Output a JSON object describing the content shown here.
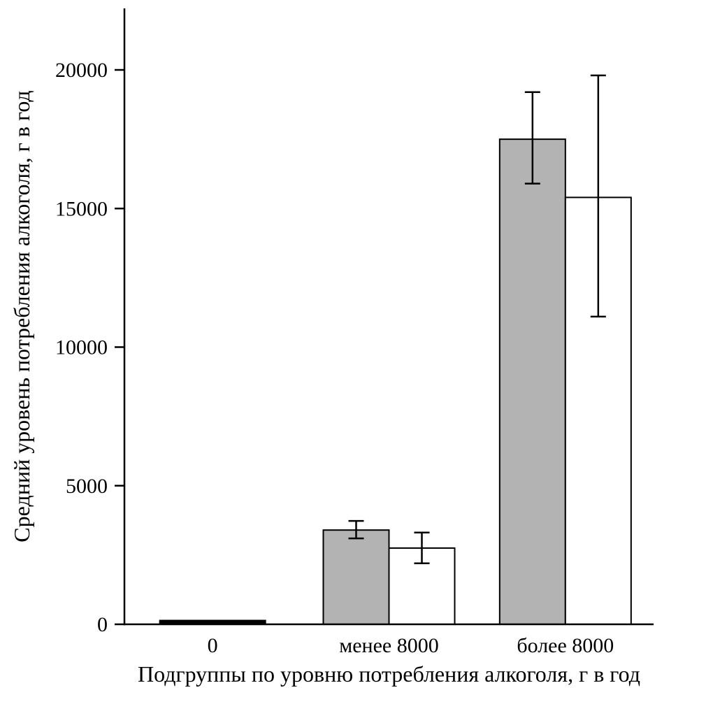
{
  "chart_data": {
    "type": "bar",
    "title": "",
    "xlabel": "Подгруппы по уровню потребления алкоголя, г в год",
    "ylabel": "Средний уровень потребления алкоголя, г в год",
    "categories": [
      "0",
      "менее 8000",
      "более 8000"
    ],
    "y_ticks": [
      0,
      5000,
      10000,
      15000,
      20000
    ],
    "ylim": [
      0,
      22200
    ],
    "grid": false,
    "legend": "none",
    "series": [
      {
        "name": "gray-series",
        "fill": "#b3b3b3",
        "values": [
          150,
          3400,
          17500
        ],
        "error_plus": [
          0,
          330,
          1700
        ],
        "error_minus": [
          0,
          300,
          1600
        ]
      },
      {
        "name": "white-series",
        "fill": "#ffffff",
        "values": [
          150,
          2750,
          15400
        ],
        "error_plus": [
          0,
          560,
          4400
        ],
        "error_minus": [
          0,
          550,
          4300
        ]
      }
    ],
    "zero_category_bar_fill": "#000000",
    "colors": {
      "axis": "#000000",
      "bar_gray": "#b3b3b3",
      "bar_white": "#ffffff",
      "error_bar": "#000000"
    }
  }
}
